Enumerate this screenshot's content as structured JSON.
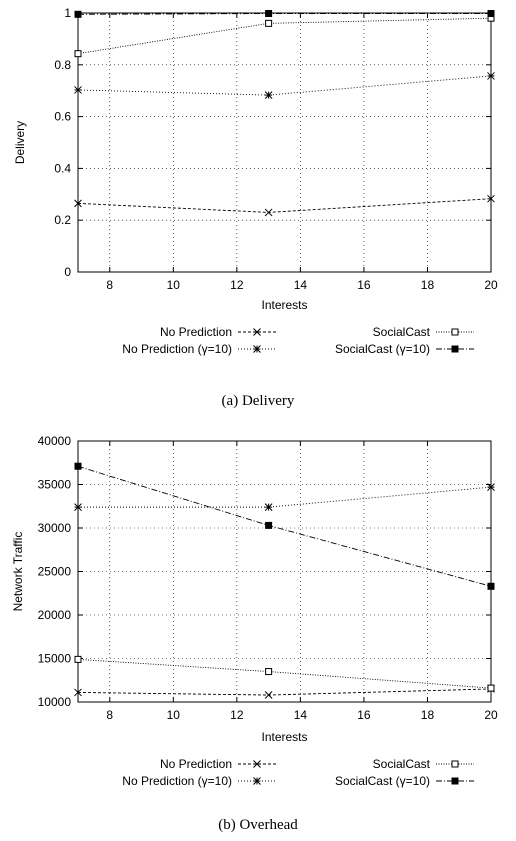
{
  "chart_data": [
    {
      "type": "line",
      "caption": "(a)  Delivery",
      "xlabel": "Interests",
      "ylabel": "Delivery",
      "xlim": [
        7,
        20
      ],
      "ylim": [
        0,
        1
      ],
      "xticks": [
        8,
        10,
        12,
        14,
        16,
        18,
        20
      ],
      "yticks": [
        0,
        0.2,
        0.4,
        0.6,
        0.8,
        1
      ],
      "ytick_labels": [
        "0",
        "0.2",
        "0.4",
        "0.6",
        "0.8",
        "1"
      ],
      "grid": true,
      "legend_placement": "below",
      "x": [
        7,
        13,
        20
      ],
      "series": [
        {
          "name": "No Prediction",
          "marker": "x",
          "dash": "3 2",
          "values": [
            0.265,
            0.23,
            0.283
          ]
        },
        {
          "name": "No Prediction (γ=10)",
          "marker": "asterisk",
          "dash": "1 2",
          "values": [
            0.703,
            0.683,
            0.757
          ]
        },
        {
          "name": "SocialCast",
          "marker": "open-square",
          "dash": "1 1.5",
          "values": [
            0.843,
            0.96,
            0.98
          ]
        },
        {
          "name": "SocialCast (γ=10)",
          "marker": "filled-square",
          "dash": "6 2 1 2",
          "values": [
            0.995,
            0.998,
            0.998
          ]
        }
      ]
    },
    {
      "type": "line",
      "caption": "(b)  Overhead",
      "xlabel": "Interests",
      "ylabel": "Network Traffic",
      "xlim": [
        7,
        20
      ],
      "ylim": [
        10000,
        40000
      ],
      "xticks": [
        8,
        10,
        12,
        14,
        16,
        18,
        20
      ],
      "yticks": [
        10000,
        15000,
        20000,
        25000,
        30000,
        35000,
        40000
      ],
      "ytick_labels": [
        "10000",
        "15000",
        "20000",
        "25000",
        "30000",
        "35000",
        "40000"
      ],
      "grid": true,
      "legend_placement": "below",
      "x": [
        7,
        13,
        20
      ],
      "series": [
        {
          "name": "No Prediction",
          "marker": "x",
          "dash": "3 2",
          "values": [
            11100,
            10800,
            11500
          ]
        },
        {
          "name": "No Prediction (γ=10)",
          "marker": "asterisk",
          "dash": "1 2",
          "values": [
            32400,
            32400,
            34700
          ]
        },
        {
          "name": "SocialCast",
          "marker": "open-square",
          "dash": "1 1.5",
          "values": [
            14900,
            13500,
            11600
          ]
        },
        {
          "name": "SocialCast (γ=10)",
          "marker": "filled-square",
          "dash": "6 2 1 2",
          "values": [
            37100,
            30300,
            23300
          ]
        }
      ]
    }
  ]
}
